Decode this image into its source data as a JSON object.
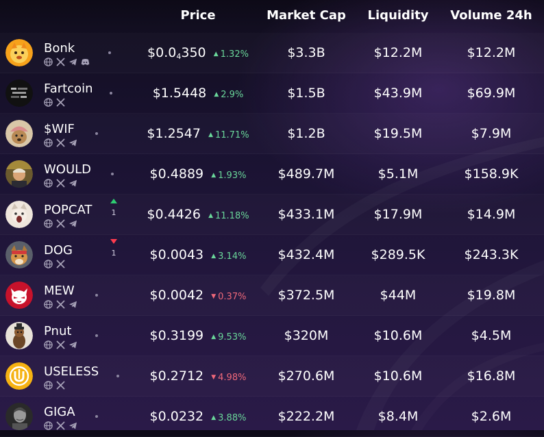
{
  "header": {
    "price": "Price",
    "market_cap": "Market Cap",
    "liquidity": "Liquidity",
    "volume": "Volume 24h"
  },
  "colors": {
    "up": "#6ad79a",
    "down": "#f0697a",
    "rank_up": "#2ecc71",
    "rank_down": "#ff3b4e"
  },
  "tokens": [
    {
      "name": "Bonk",
      "price_main": "$0.0",
      "price_sub": "4",
      "price_tail": "350",
      "change": "1.32%",
      "direction": "up",
      "market_cap": "$3.3B",
      "liquidity": "$12.2M",
      "volume": "$12.2M",
      "socials": [
        "globe-icon",
        "x-icon",
        "telegram-icon",
        "discord-icon"
      ],
      "rank_change": null
    },
    {
      "name": "Fartcoin",
      "price_main": "$1.5448",
      "price_sub": "",
      "price_tail": "",
      "change": "2.9%",
      "direction": "up",
      "market_cap": "$1.5B",
      "liquidity": "$43.9M",
      "volume": "$69.9M",
      "socials": [
        "globe-icon",
        "x-icon"
      ],
      "rank_change": null
    },
    {
      "name": "$WIF",
      "price_main": "$1.2547",
      "price_sub": "",
      "price_tail": "",
      "change": "11.71%",
      "direction": "up",
      "market_cap": "$1.2B",
      "liquidity": "$19.5M",
      "volume": "$7.9M",
      "socials": [
        "globe-icon",
        "x-icon",
        "telegram-icon"
      ],
      "rank_change": null
    },
    {
      "name": "WOULD",
      "price_main": "$0.4889",
      "price_sub": "",
      "price_tail": "",
      "change": "1.93%",
      "direction": "up",
      "market_cap": "$489.7M",
      "liquidity": "$5.1M",
      "volume": "$158.9K",
      "socials": [
        "globe-icon",
        "x-icon",
        "telegram-icon"
      ],
      "rank_change": null
    },
    {
      "name": "POPCAT",
      "price_main": "$0.4426",
      "price_sub": "",
      "price_tail": "",
      "change": "11.18%",
      "direction": "up",
      "market_cap": "$433.1M",
      "liquidity": "$17.9M",
      "volume": "$14.9M",
      "socials": [
        "globe-icon",
        "x-icon",
        "telegram-icon"
      ],
      "rank_change": {
        "direction": "up",
        "value": "1"
      }
    },
    {
      "name": "DOG",
      "price_main": "$0.0043",
      "price_sub": "",
      "price_tail": "",
      "change": "3.14%",
      "direction": "up",
      "market_cap": "$432.4M",
      "liquidity": "$289.5K",
      "volume": "$243.3K",
      "socials": [
        "globe-icon",
        "x-icon"
      ],
      "rank_change": {
        "direction": "down",
        "value": "1"
      }
    },
    {
      "name": "MEW",
      "price_main": "$0.0042",
      "price_sub": "",
      "price_tail": "",
      "change": "0.37%",
      "direction": "down",
      "market_cap": "$372.5M",
      "liquidity": "$44M",
      "volume": "$19.8M",
      "socials": [
        "globe-icon",
        "x-icon",
        "telegram-icon"
      ],
      "rank_change": null
    },
    {
      "name": "Pnut",
      "price_main": "$0.3199",
      "price_sub": "",
      "price_tail": "",
      "change": "9.53%",
      "direction": "up",
      "market_cap": "$320M",
      "liquidity": "$10.6M",
      "volume": "$4.5M",
      "socials": [
        "globe-icon",
        "x-icon",
        "telegram-icon"
      ],
      "rank_change": null
    },
    {
      "name": "USELESS",
      "price_main": "$0.2712",
      "price_sub": "",
      "price_tail": "",
      "change": "4.98%",
      "direction": "down",
      "market_cap": "$270.6M",
      "liquidity": "$10.6M",
      "volume": "$16.8M",
      "socials": [
        "globe-icon",
        "x-icon"
      ],
      "rank_change": null
    },
    {
      "name": "GIGA",
      "price_main": "$0.0232",
      "price_sub": "",
      "price_tail": "",
      "change": "3.88%",
      "direction": "up",
      "market_cap": "$222.2M",
      "liquidity": "$8.4M",
      "volume": "$2.6M",
      "socials": [
        "globe-icon",
        "x-icon",
        "telegram-icon"
      ],
      "rank_change": null
    }
  ]
}
